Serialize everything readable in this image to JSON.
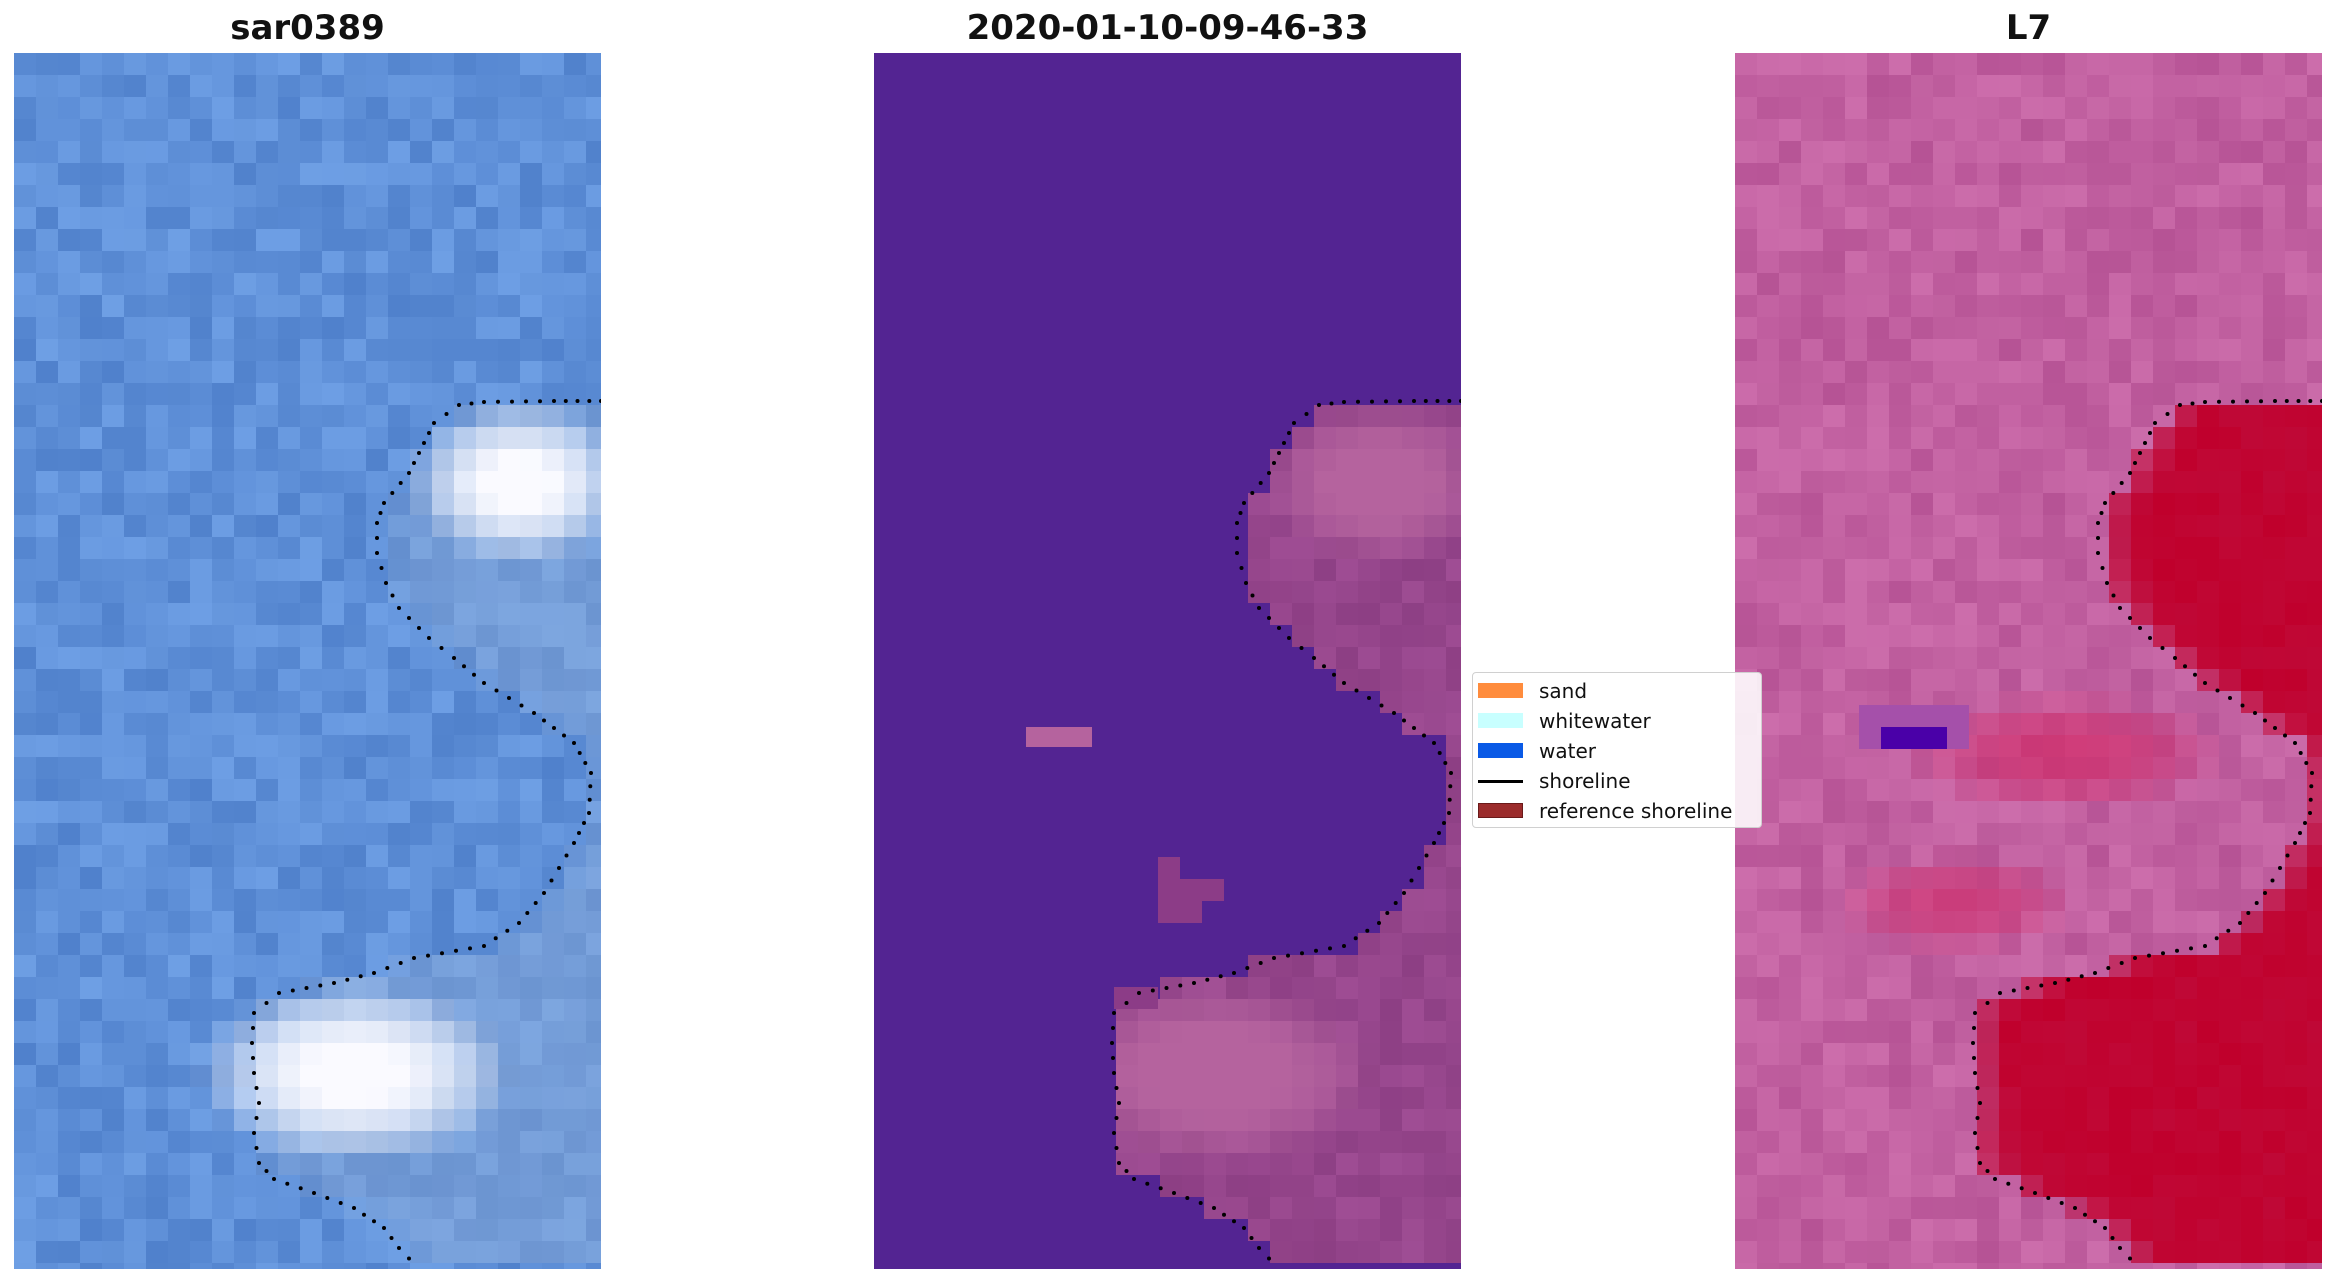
{
  "panels": [
    {
      "title": "sar0389",
      "style": "rgb",
      "base_color": "#5f90d8"
    },
    {
      "title": "2020-01-10-09-46-33",
      "style": "classified",
      "base_color": "#532492",
      "overlay_color": "#b5639e"
    },
    {
      "title": "L7",
      "style": "mndwi",
      "base_color": "#c160a0",
      "accent_color": "#c0002c",
      "dark_spot_color": "#4a00a8"
    }
  ],
  "legend": {
    "items": [
      {
        "label": "sand",
        "kind": "patch",
        "color": "#ff8c3d"
      },
      {
        "label": "whitewater",
        "kind": "patch",
        "color": "#c8ffff"
      },
      {
        "label": "water",
        "kind": "patch",
        "color": "#0a5ae6"
      },
      {
        "label": "shoreline",
        "kind": "line",
        "color": "#000000"
      },
      {
        "label": "reference shoreline",
        "kind": "patch",
        "color": "#9b2c2c"
      }
    ]
  }
}
